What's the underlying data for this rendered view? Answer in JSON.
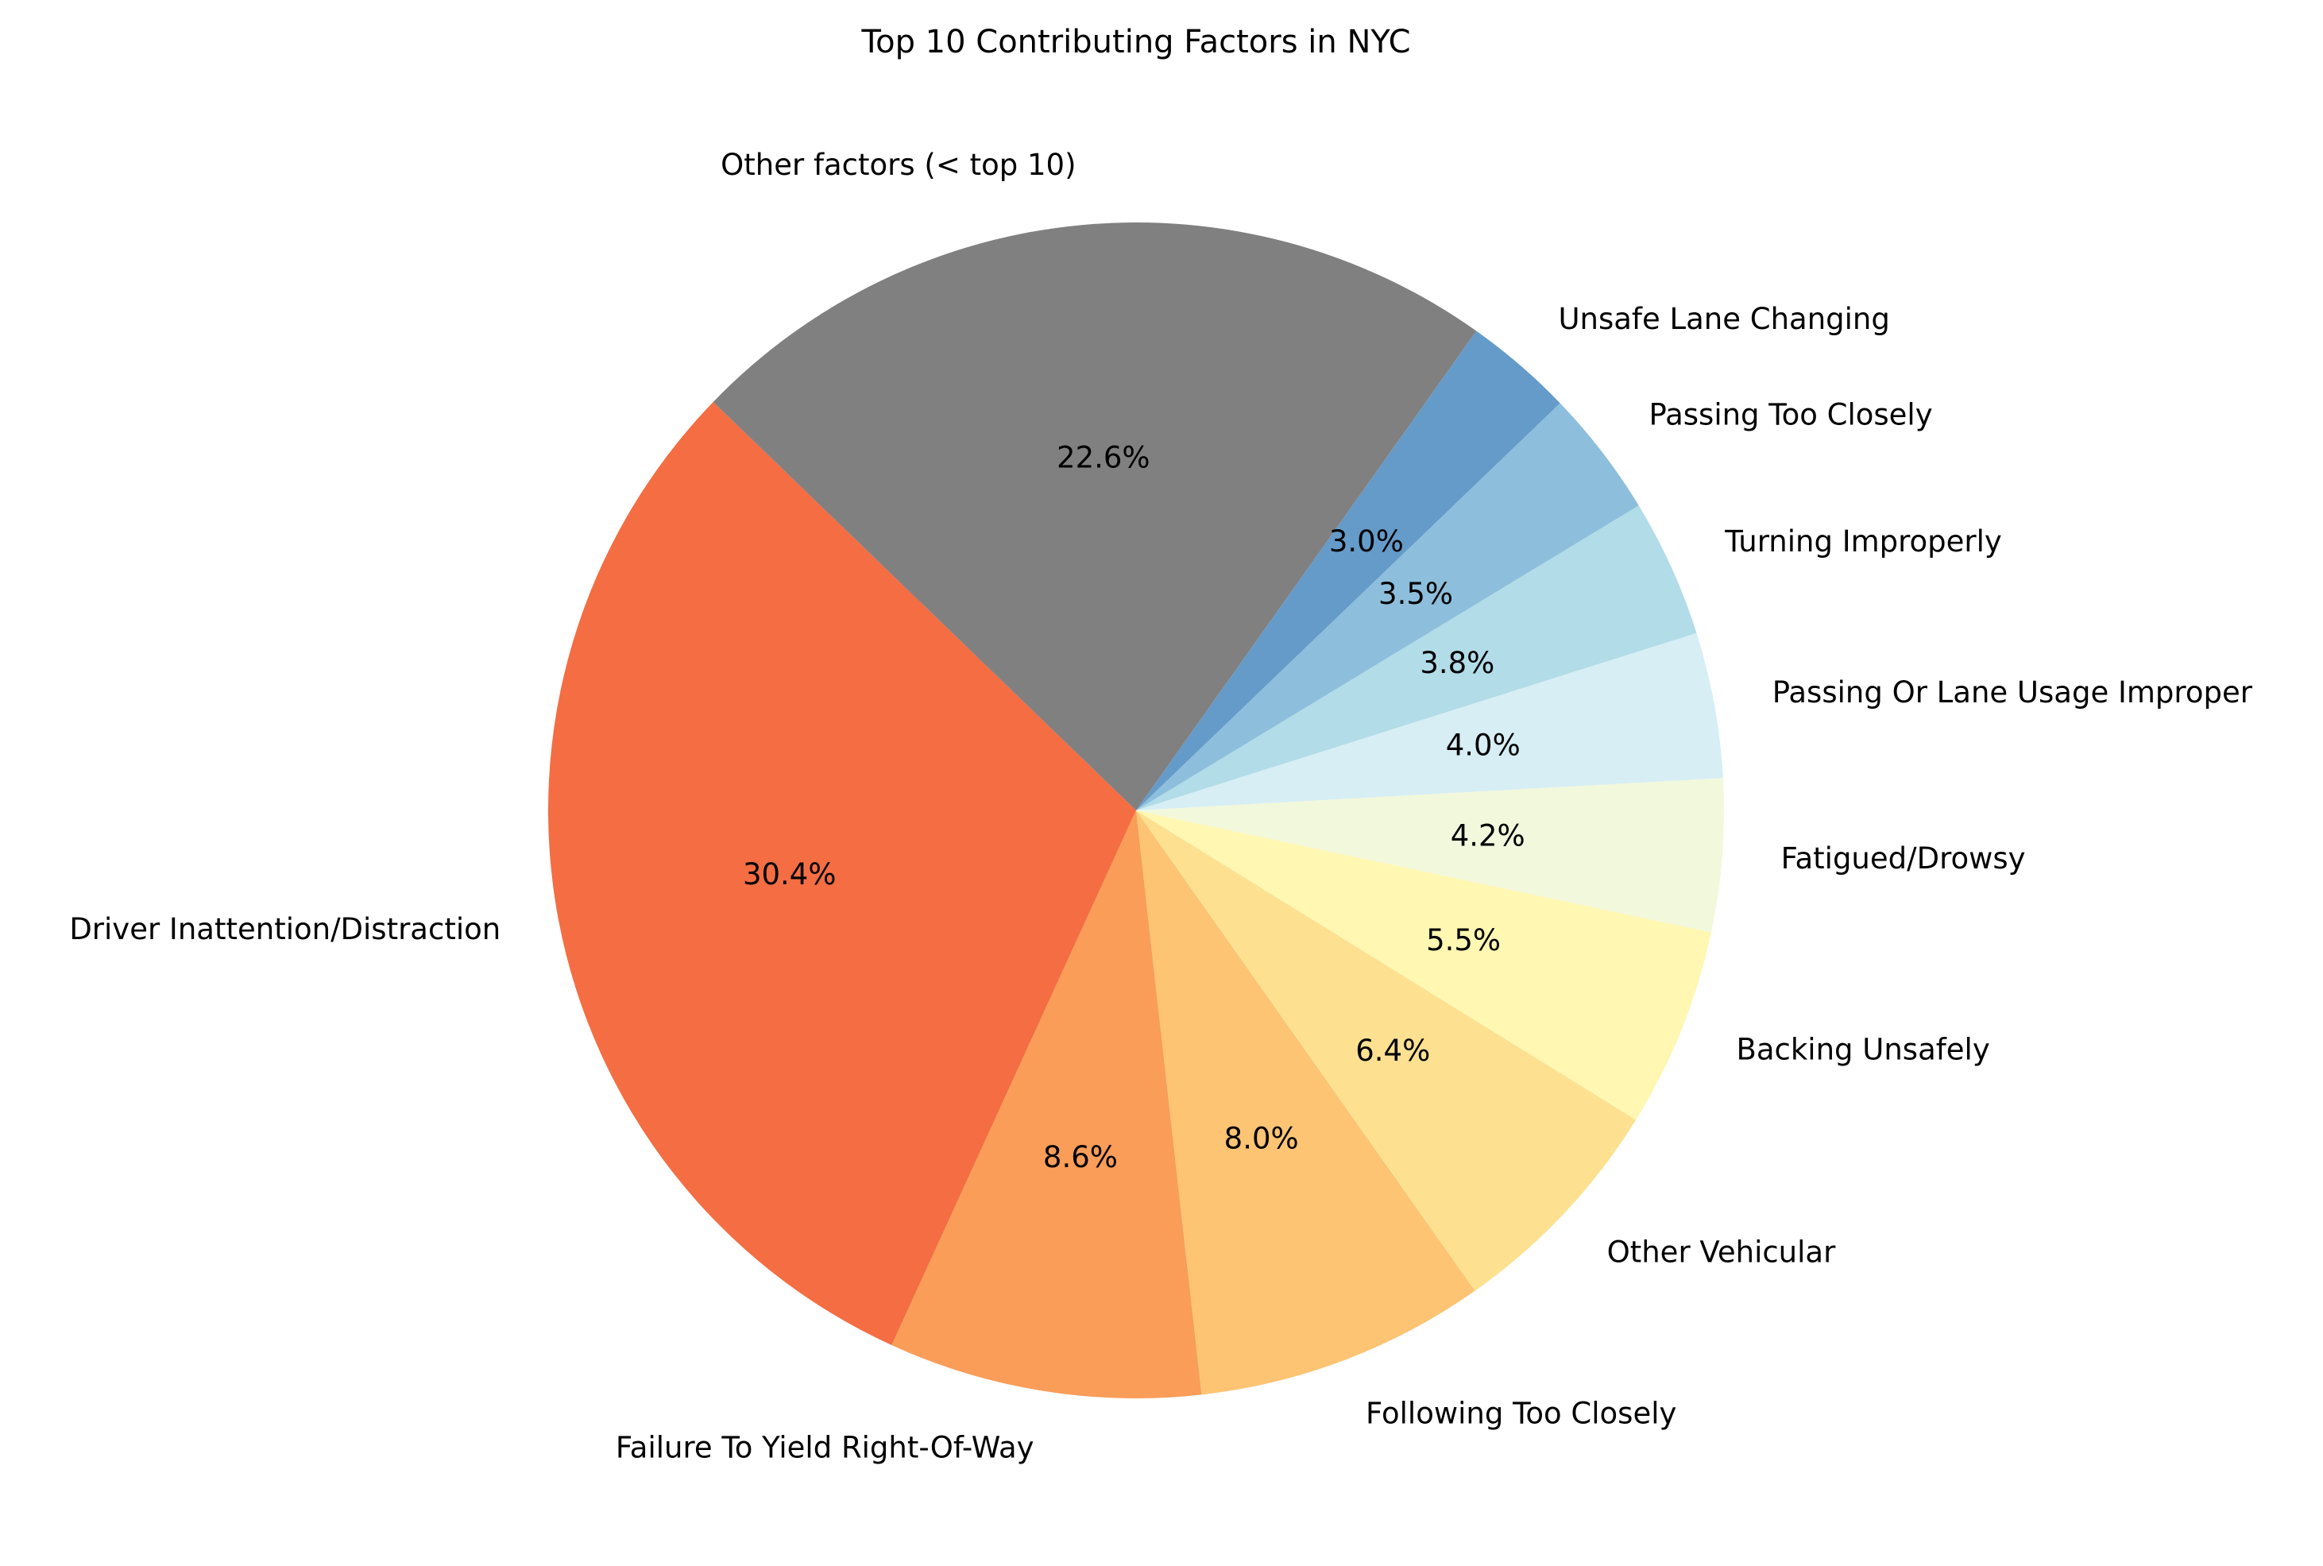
{
  "chart_data": {
    "type": "pie",
    "title": "Top 10 Contributing Factors in NYC",
    "slices": [
      {
        "label": "Driver Inattention/Distraction",
        "value": 30.4,
        "pct_label": "30.4%",
        "color": "#f46d43"
      },
      {
        "label": "Failure To Yield Right-Of-Way",
        "value": 8.6,
        "pct_label": "8.6%",
        "color": "#f99d59"
      },
      {
        "label": "Following Too Closely",
        "value": 8.0,
        "pct_label": "8.0%",
        "color": "#fdc474"
      },
      {
        "label": "Other Vehicular",
        "value": 6.4,
        "pct_label": "6.4%",
        "color": "#fde191"
      },
      {
        "label": "Backing Unsafely",
        "value": 5.5,
        "pct_label": "5.5%",
        "color": "#fff7b2"
      },
      {
        "label": "Fatigued/Drowsy",
        "value": 4.2,
        "pct_label": "4.2%",
        "color": "#f2f8dc"
      },
      {
        "label": "Passing Or Lane Usage Improper",
        "value": 4.0,
        "pct_label": "4.0%",
        "color": "#d7eef5"
      },
      {
        "label": "Turning Improperly",
        "value": 3.8,
        "pct_label": "3.8%",
        "color": "#b1dce8"
      },
      {
        "label": "Passing Too Closely",
        "value": 3.5,
        "pct_label": "3.5%",
        "color": "#8dbfdc"
      },
      {
        "label": "Unsafe Lane Changing",
        "value": 3.0,
        "pct_label": "3.0%",
        "color": "#659bc9"
      },
      {
        "label": "Other factors (< top 10)",
        "value": 22.6,
        "pct_label": "22.6%",
        "color": "#808080"
      }
    ],
    "start_angle_deg": 136,
    "direction": "counterclockwise",
    "legend": "none"
  }
}
